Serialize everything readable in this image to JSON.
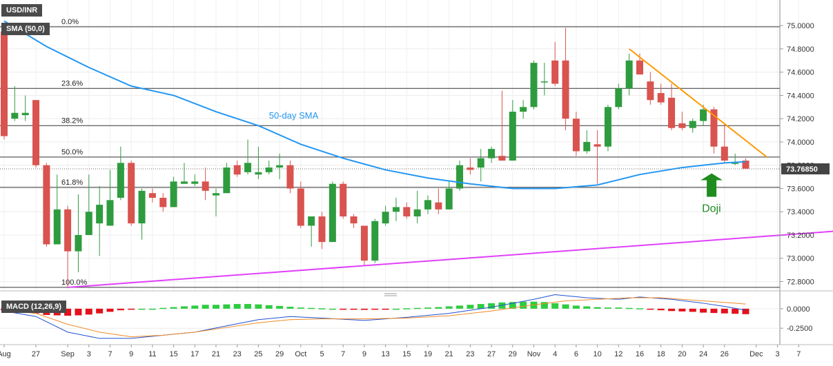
{
  "header": {
    "symbol": "USD/INR",
    "sma_label": "SMA (50,0)",
    "macd_label": "MACD (12,26,9)"
  },
  "chart_data": [
    {
      "type": "candlestick",
      "title": "USD/INR",
      "ylim": [
        72.72,
        75.22
      ],
      "y_ticks": [
        72.8,
        73.0,
        73.2,
        73.4,
        73.6,
        73.8,
        74.0,
        74.2,
        74.4,
        74.6,
        74.8,
        75.0
      ],
      "y_tick_labels": [
        "72.8000",
        "73.0000",
        "73.2000",
        "73.4000",
        "73.6000",
        "73.8000",
        "74.0000",
        "74.2000",
        "74.4000",
        "74.6000",
        "74.8000",
        "75.0000"
      ],
      "x_ticks": [
        {
          "label": "Aug",
          "i": 0
        },
        {
          "label": "27",
          "i": 3
        },
        {
          "label": "Sep",
          "i": 6
        },
        {
          "label": "3",
          "i": 8
        },
        {
          "label": "7",
          "i": 10
        },
        {
          "label": "9",
          "i": 12
        },
        {
          "label": "11",
          "i": 14
        },
        {
          "label": "15",
          "i": 16
        },
        {
          "label": "17",
          "i": 18
        },
        {
          "label": "21",
          "i": 20
        },
        {
          "label": "23",
          "i": 22
        },
        {
          "label": "25",
          "i": 24
        },
        {
          "label": "29",
          "i": 26
        },
        {
          "label": "Oct",
          "i": 28
        },
        {
          "label": "5",
          "i": 30
        },
        {
          "label": "7",
          "i": 32
        },
        {
          "label": "9",
          "i": 34
        },
        {
          "label": "13",
          "i": 36
        },
        {
          "label": "15",
          "i": 38
        },
        {
          "label": "19",
          "i": 40
        },
        {
          "label": "21",
          "i": 42
        },
        {
          "label": "23",
          "i": 44
        },
        {
          "label": "27",
          "i": 46
        },
        {
          "label": "29",
          "i": 48
        },
        {
          "label": "Nov",
          "i": 50
        },
        {
          "label": "4",
          "i": 52
        },
        {
          "label": "6",
          "i": 54
        },
        {
          "label": "10",
          "i": 56
        },
        {
          "label": "12",
          "i": 58
        },
        {
          "label": "16",
          "i": 60
        },
        {
          "label": "18",
          "i": 62
        },
        {
          "label": "20",
          "i": 64
        },
        {
          "label": "24",
          "i": 66
        },
        {
          "label": "26",
          "i": 68
        },
        {
          "label": "Dec",
          "i": 71
        },
        {
          "label": "3",
          "i": 73
        },
        {
          "label": "7",
          "i": 75
        }
      ],
      "candles": [
        {
          "o": 74.95,
          "h": 75.0,
          "l": 74.02,
          "c": 74.05
        },
        {
          "o": 74.2,
          "h": 74.48,
          "l": 74.18,
          "c": 74.25
        },
        {
          "o": 74.23,
          "h": 74.4,
          "l": 74.18,
          "c": 74.25
        },
        {
          "o": 74.36,
          "h": 74.36,
          "l": 73.78,
          "c": 73.8
        },
        {
          "o": 73.8,
          "h": 73.82,
          "l": 73.1,
          "c": 73.12
        },
        {
          "o": 73.12,
          "h": 73.72,
          "l": 73.12,
          "c": 73.42
        },
        {
          "o": 73.42,
          "h": 73.45,
          "l": 72.75,
          "c": 73.06
        },
        {
          "o": 73.06,
          "h": 73.55,
          "l": 72.88,
          "c": 73.2
        },
        {
          "o": 73.2,
          "h": 73.72,
          "l": 73.2,
          "c": 73.4
        },
        {
          "o": 73.3,
          "h": 73.62,
          "l": 73.02,
          "c": 73.46
        },
        {
          "o": 73.28,
          "h": 73.76,
          "l": 73.28,
          "c": 73.5
        },
        {
          "o": 73.52,
          "h": 73.96,
          "l": 73.5,
          "c": 73.82
        },
        {
          "o": 73.82,
          "h": 73.84,
          "l": 73.28,
          "c": 73.3
        },
        {
          "o": 73.3,
          "h": 73.6,
          "l": 73.16,
          "c": 73.58
        },
        {
          "o": 73.56,
          "h": 73.6,
          "l": 73.48,
          "c": 73.52
        },
        {
          "o": 73.52,
          "h": 73.56,
          "l": 73.4,
          "c": 73.44
        },
        {
          "o": 73.44,
          "h": 73.7,
          "l": 73.44,
          "c": 73.66
        },
        {
          "o": 73.64,
          "h": 73.82,
          "l": 73.64,
          "c": 73.66
        },
        {
          "o": 73.64,
          "h": 73.72,
          "l": 73.62,
          "c": 73.66
        },
        {
          "o": 73.66,
          "h": 73.78,
          "l": 73.5,
          "c": 73.58
        },
        {
          "o": 73.54,
          "h": 73.6,
          "l": 73.36,
          "c": 73.56
        },
        {
          "o": 73.56,
          "h": 73.82,
          "l": 73.56,
          "c": 73.78
        },
        {
          "o": 73.8,
          "h": 73.84,
          "l": 73.7,
          "c": 73.72
        },
        {
          "o": 73.74,
          "h": 74.02,
          "l": 73.72,
          "c": 73.82
        },
        {
          "o": 73.72,
          "h": 73.96,
          "l": 73.68,
          "c": 73.74
        },
        {
          "o": 73.74,
          "h": 73.84,
          "l": 73.72,
          "c": 73.78
        },
        {
          "o": 73.78,
          "h": 73.9,
          "l": 73.68,
          "c": 73.8
        },
        {
          "o": 73.8,
          "h": 73.84,
          "l": 73.56,
          "c": 73.6
        },
        {
          "o": 73.6,
          "h": 73.66,
          "l": 73.26,
          "c": 73.28
        },
        {
          "o": 73.28,
          "h": 73.36,
          "l": 73.1,
          "c": 73.36
        },
        {
          "o": 73.36,
          "h": 73.4,
          "l": 73.08,
          "c": 73.14
        },
        {
          "o": 73.14,
          "h": 73.66,
          "l": 73.14,
          "c": 73.64
        },
        {
          "o": 73.64,
          "h": 73.66,
          "l": 73.34,
          "c": 73.36
        },
        {
          "o": 73.36,
          "h": 73.38,
          "l": 73.26,
          "c": 73.3
        },
        {
          "o": 73.28,
          "h": 73.28,
          "l": 72.94,
          "c": 72.98
        },
        {
          "o": 72.98,
          "h": 73.34,
          "l": 72.96,
          "c": 73.32
        },
        {
          "o": 73.3,
          "h": 73.45,
          "l": 73.28,
          "c": 73.4
        },
        {
          "o": 73.4,
          "h": 73.52,
          "l": 73.32,
          "c": 73.44
        },
        {
          "o": 73.44,
          "h": 73.48,
          "l": 73.34,
          "c": 73.36
        },
        {
          "o": 73.36,
          "h": 73.58,
          "l": 73.3,
          "c": 73.42
        },
        {
          "o": 73.42,
          "h": 73.54,
          "l": 73.38,
          "c": 73.5
        },
        {
          "o": 73.48,
          "h": 73.6,
          "l": 73.38,
          "c": 73.42
        },
        {
          "o": 73.42,
          "h": 73.66,
          "l": 73.42,
          "c": 73.6
        },
        {
          "o": 73.6,
          "h": 73.84,
          "l": 73.58,
          "c": 73.8
        },
        {
          "o": 73.78,
          "h": 73.86,
          "l": 73.72,
          "c": 73.76
        },
        {
          "o": 73.78,
          "h": 73.94,
          "l": 73.66,
          "c": 73.86
        },
        {
          "o": 73.86,
          "h": 73.96,
          "l": 73.82,
          "c": 73.94
        },
        {
          "o": 73.88,
          "h": 74.44,
          "l": 73.84,
          "c": 73.84
        },
        {
          "o": 73.84,
          "h": 74.36,
          "l": 73.84,
          "c": 74.26
        },
        {
          "o": 74.26,
          "h": 74.36,
          "l": 74.2,
          "c": 74.3
        },
        {
          "o": 74.3,
          "h": 74.7,
          "l": 74.28,
          "c": 74.68
        },
        {
          "o": 74.52,
          "h": 74.68,
          "l": 74.4,
          "c": 74.52
        },
        {
          "o": 74.7,
          "h": 74.86,
          "l": 74.48,
          "c": 74.5
        },
        {
          "o": 74.7,
          "h": 74.98,
          "l": 74.1,
          "c": 74.2
        },
        {
          "o": 74.2,
          "h": 74.26,
          "l": 73.88,
          "c": 73.92
        },
        {
          "o": 73.92,
          "h": 74.1,
          "l": 73.9,
          "c": 74.0
        },
        {
          "o": 73.98,
          "h": 74.1,
          "l": 73.64,
          "c": 73.96
        },
        {
          "o": 73.96,
          "h": 74.32,
          "l": 73.92,
          "c": 74.3
        },
        {
          "o": 74.3,
          "h": 74.5,
          "l": 74.28,
          "c": 74.46
        },
        {
          "o": 74.46,
          "h": 74.76,
          "l": 74.4,
          "c": 74.7
        },
        {
          "o": 74.7,
          "h": 74.76,
          "l": 74.58,
          "c": 74.58
        },
        {
          "o": 74.52,
          "h": 74.6,
          "l": 74.32,
          "c": 74.36
        },
        {
          "o": 74.42,
          "h": 74.5,
          "l": 74.32,
          "c": 74.34
        },
        {
          "o": 74.38,
          "h": 74.5,
          "l": 74.1,
          "c": 74.12
        },
        {
          "o": 74.16,
          "h": 74.26,
          "l": 74.1,
          "c": 74.12
        },
        {
          "o": 74.12,
          "h": 74.2,
          "l": 74.08,
          "c": 74.18
        },
        {
          "o": 74.18,
          "h": 74.32,
          "l": 74.14,
          "c": 74.28
        },
        {
          "o": 74.28,
          "h": 74.3,
          "l": 73.9,
          "c": 73.96
        },
        {
          "o": 73.96,
          "h": 74.16,
          "l": 73.82,
          "c": 73.84
        },
        {
          "o": 73.82,
          "h": 73.9,
          "l": 73.8,
          "c": 73.82
        },
        {
          "o": 73.84,
          "h": 73.86,
          "l": 73.77,
          "c": 73.77
        }
      ],
      "sma_50": [
        [
          0,
          75.04
        ],
        [
          4,
          74.82
        ],
        [
          8,
          74.64
        ],
        [
          12,
          74.48
        ],
        [
          16,
          74.4
        ],
        [
          20,
          74.26
        ],
        [
          24,
          74.14
        ],
        [
          28,
          73.98
        ],
        [
          32,
          73.86
        ],
        [
          36,
          73.76
        ],
        [
          40,
          73.69
        ],
        [
          44,
          73.64
        ],
        [
          48,
          73.6
        ],
        [
          52,
          73.6
        ],
        [
          56,
          73.63
        ],
        [
          60,
          73.72
        ],
        [
          64,
          73.78
        ],
        [
          68,
          73.82
        ],
        [
          70,
          73.83
        ]
      ],
      "fibonacci": [
        {
          "label": "0.0%",
          "value": 74.99
        },
        {
          "label": "23.6%",
          "value": 74.46
        },
        {
          "label": "38.2%",
          "value": 74.14
        },
        {
          "label": "50.0%",
          "value": 73.87
        },
        {
          "label": "61.8%",
          "value": 73.61
        },
        {
          "label": "100.0%",
          "value": 72.75
        }
      ],
      "resistance_line": {
        "from": [
          59,
          74.8
        ],
        "to": [
          72,
          73.87
        ]
      },
      "support_line": {
        "from": [
          6,
          72.75
        ],
        "to": [
          81,
          73.25
        ]
      },
      "last_price": 73.7685,
      "last_price_label": "73.76850",
      "annotations": {
        "sma_text": "50-day SMA",
        "doji_text": "Doji"
      },
      "colors": {
        "bull": "#2e9c3e",
        "bear": "#d9534f",
        "sma": "#2196f3",
        "resistance": "#ff9800",
        "support": "#e040fb",
        "fib": "#333333",
        "doji_arrow": "#1e8c1e"
      }
    },
    {
      "type": "histogram",
      "title": "MACD (12,26,9)",
      "ylim": [
        -0.46,
        0.14
      ],
      "y_ticks": [
        0.0,
        -0.25
      ],
      "y_tick_labels": [
        "0.0000",
        "-0.2500"
      ],
      "histogram": [
        -0.02,
        -0.03,
        -0.045,
        -0.06,
        -0.08,
        -0.085,
        -0.09,
        -0.085,
        -0.075,
        -0.06,
        -0.04,
        -0.02,
        -0.01,
        0.0,
        0.0,
        0.01,
        0.02,
        0.03,
        0.04,
        0.05,
        0.05,
        0.055,
        0.06,
        0.06,
        0.055,
        0.045,
        0.035,
        0.025,
        0.015,
        0.01,
        0.005,
        0.0,
        -0.005,
        -0.01,
        -0.015,
        -0.01,
        -0.005,
        0.0,
        0.005,
        0.01,
        0.015,
        0.02,
        0.03,
        0.04,
        0.05,
        0.06,
        0.07,
        0.08,
        0.085,
        0.09,
        0.09,
        0.085,
        0.07,
        0.055,
        0.04,
        0.03,
        0.02,
        0.015,
        0.015,
        0.01,
        0.005,
        -0.01,
        -0.02,
        -0.03,
        -0.035,
        -0.04,
        -0.05,
        -0.055,
        -0.06,
        -0.065,
        -0.07
      ],
      "macd_line": [
        [
          0,
          -0.03
        ],
        [
          3,
          -0.1
        ],
        [
          6,
          -0.3
        ],
        [
          9,
          -0.38
        ],
        [
          12,
          -0.38
        ],
        [
          15,
          -0.34
        ],
        [
          18,
          -0.3
        ],
        [
          21,
          -0.22
        ],
        [
          24,
          -0.14
        ],
        [
          27,
          -0.1
        ],
        [
          30,
          -0.12
        ],
        [
          34,
          -0.15
        ],
        [
          38,
          -0.11
        ],
        [
          42,
          -0.06
        ],
        [
          46,
          0.02
        ],
        [
          50,
          0.12
        ],
        [
          52,
          0.18
        ],
        [
          55,
          0.14
        ],
        [
          58,
          0.12
        ],
        [
          60,
          0.15
        ],
        [
          63,
          0.12
        ],
        [
          66,
          0.07
        ],
        [
          68,
          0.03
        ],
        [
          70,
          -0.02
        ]
      ],
      "signal_line": [
        [
          0,
          -0.02
        ],
        [
          3,
          -0.06
        ],
        [
          6,
          -0.2
        ],
        [
          9,
          -0.3
        ],
        [
          12,
          -0.36
        ],
        [
          15,
          -0.34
        ],
        [
          18,
          -0.3
        ],
        [
          21,
          -0.24
        ],
        [
          24,
          -0.18
        ],
        [
          27,
          -0.14
        ],
        [
          30,
          -0.13
        ],
        [
          34,
          -0.13
        ],
        [
          38,
          -0.12
        ],
        [
          42,
          -0.09
        ],
        [
          46,
          -0.03
        ],
        [
          50,
          0.05
        ],
        [
          53,
          0.1
        ],
        [
          56,
          0.12
        ],
        [
          59,
          0.14
        ],
        [
          62,
          0.14
        ],
        [
          65,
          0.11
        ],
        [
          68,
          0.08
        ],
        [
          70,
          0.06
        ]
      ],
      "colors": {
        "pos": "#2ecc40",
        "neg": "#e3111b",
        "macd": "#1f4fd1",
        "signal": "#f08a24"
      }
    }
  ]
}
